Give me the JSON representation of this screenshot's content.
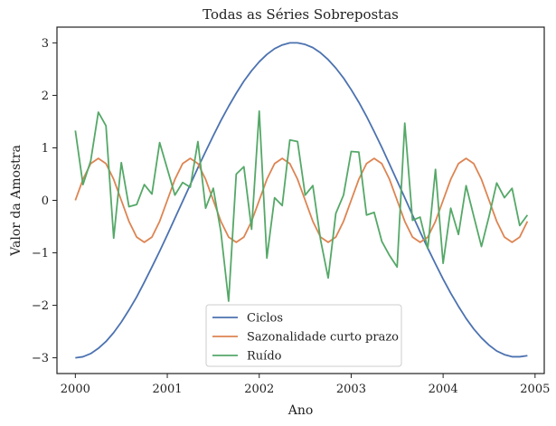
{
  "chart_data": {
    "type": "line",
    "title": "Todas as Séries Sobrepostas",
    "xlabel": "Ano",
    "ylabel": "Valor da Amostra",
    "xlim": [
      1999.8,
      2005.1
    ],
    "ylim": [
      -3.3,
      3.3
    ],
    "xticks": [
      2000,
      2001,
      2002,
      2003,
      2004,
      2005
    ],
    "yticks": [
      -3,
      -2,
      -1,
      0,
      1,
      2,
      3
    ],
    "xtick_labels": [
      "2000",
      "2001",
      "2002",
      "2003",
      "2004",
      "2005"
    ],
    "ytick_labels": [
      "−3",
      "−2",
      "−1",
      "0",
      "1",
      "2",
      "3"
    ],
    "legend_position": "lower-center",
    "grid": false,
    "x": [
      2000.0,
      2000.083,
      2000.167,
      2000.25,
      2000.333,
      2000.417,
      2000.5,
      2000.583,
      2000.667,
      2000.75,
      2000.833,
      2000.917,
      2001.0,
      2001.083,
      2001.167,
      2001.25,
      2001.333,
      2001.417,
      2001.5,
      2001.583,
      2001.667,
      2001.75,
      2001.833,
      2001.917,
      2002.0,
      2002.083,
      2002.167,
      2002.25,
      2002.333,
      2002.417,
      2002.5,
      2002.583,
      2002.667,
      2002.75,
      2002.833,
      2002.917,
      2003.0,
      2003.083,
      2003.167,
      2003.25,
      2003.333,
      2003.417,
      2003.5,
      2003.583,
      2003.667,
      2003.75,
      2003.833,
      2003.917,
      2004.0,
      2004.083,
      2004.167,
      2004.25,
      2004.333,
      2004.417,
      2004.5,
      2004.583,
      2004.667,
      2004.75,
      2004.833,
      2004.917
    ],
    "series": [
      {
        "name": "Ciclos",
        "color": "#4c72b0",
        "values": [
          -3.0,
          -2.98,
          -2.92,
          -2.82,
          -2.69,
          -2.52,
          -2.32,
          -2.09,
          -1.84,
          -1.56,
          -1.27,
          -0.97,
          -0.66,
          -0.34,
          -0.02,
          0.3,
          0.62,
          0.93,
          1.23,
          1.52,
          1.79,
          2.04,
          2.27,
          2.47,
          2.64,
          2.78,
          2.89,
          2.96,
          3.0,
          3.0,
          2.97,
          2.91,
          2.81,
          2.68,
          2.52,
          2.33,
          2.11,
          1.87,
          1.6,
          1.31,
          1.01,
          0.69,
          0.37,
          0.05,
          -0.28,
          -0.6,
          -0.91,
          -1.21,
          -1.5,
          -1.77,
          -2.02,
          -2.25,
          -2.45,
          -2.62,
          -2.76,
          -2.87,
          -2.94,
          -2.98,
          -2.98,
          -2.96
        ]
      },
      {
        "name": "Sazonalidade curto prazo",
        "color": "#dd8452",
        "values": [
          0.0,
          0.4,
          0.7,
          0.8,
          0.7,
          0.4,
          0.0,
          -0.4,
          -0.7,
          -0.8,
          -0.7,
          -0.4,
          0.0,
          0.4,
          0.7,
          0.8,
          0.7,
          0.4,
          0.0,
          -0.4,
          -0.7,
          -0.8,
          -0.7,
          -0.4,
          0.0,
          0.4,
          0.7,
          0.8,
          0.7,
          0.4,
          0.0,
          -0.4,
          -0.7,
          -0.8,
          -0.7,
          -0.4,
          0.0,
          0.4,
          0.7,
          0.8,
          0.7,
          0.4,
          0.0,
          -0.4,
          -0.7,
          -0.8,
          -0.7,
          -0.4,
          0.0,
          0.4,
          0.7,
          0.8,
          0.7,
          0.4,
          0.0,
          -0.4,
          -0.7,
          -0.8,
          -0.7,
          -0.4
        ]
      },
      {
        "name": "Ruído",
        "color": "#55a868",
        "values": [
          1.33,
          0.3,
          0.75,
          1.68,
          1.42,
          -0.72,
          0.72,
          -0.12,
          -0.08,
          0.3,
          0.12,
          1.1,
          0.6,
          0.1,
          0.34,
          0.25,
          1.12,
          -0.15,
          0.23,
          -0.6,
          -1.92,
          0.5,
          0.64,
          -0.55,
          1.7,
          -1.1,
          0.05,
          -0.1,
          1.15,
          1.12,
          0.1,
          0.28,
          -0.75,
          -1.48,
          -0.25,
          0.1,
          0.93,
          0.92,
          -0.28,
          -0.23,
          -0.78,
          -1.05,
          -1.27,
          1.47,
          -0.38,
          -0.32,
          -0.92,
          0.59,
          -1.2,
          -0.15,
          -0.65,
          0.28,
          -0.3,
          -0.88,
          -0.3,
          0.33,
          0.05,
          0.23,
          -0.48,
          -0.28
        ]
      }
    ]
  }
}
